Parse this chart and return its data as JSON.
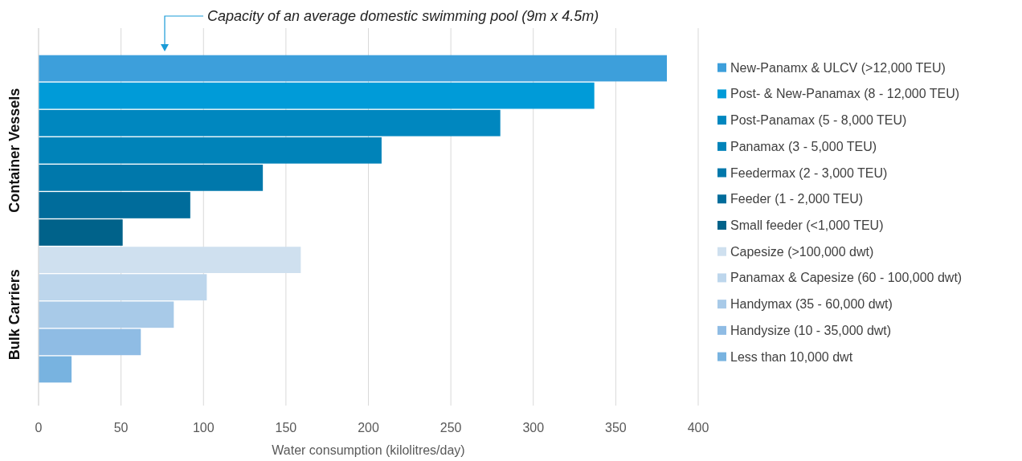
{
  "chart_data": {
    "type": "bar",
    "orientation": "horizontal",
    "stacked": true,
    "categories": [
      null,
      null,
      null,
      null,
      null,
      null,
      null,
      null,
      null,
      null,
      null,
      null
    ],
    "series": [
      {
        "name": "New-Panamx & ULCV (>12,000 TEU)",
        "color": "#3d9fdb",
        "values": [
          381,
          null,
          null,
          null,
          null,
          null,
          null,
          null,
          null,
          null,
          null,
          null
        ]
      },
      {
        "name": "Post- & New-Panamax (8 - 12,000 TEU)",
        "color": "#009bd8",
        "values": [
          null,
          337,
          null,
          null,
          null,
          null,
          null,
          null,
          null,
          null,
          null,
          null
        ]
      },
      {
        "name": "Post-Panamax (5 - 8,000 TEU)",
        "color": "#0087bf",
        "values": [
          null,
          null,
          280,
          null,
          null,
          null,
          null,
          null,
          null,
          null,
          null,
          null
        ]
      },
      {
        "name": "Panamax (3 - 5,000 TEU)",
        "color": "#0083b9",
        "values": [
          null,
          null,
          null,
          208,
          null,
          null,
          null,
          null,
          null,
          null,
          null,
          null
        ]
      },
      {
        "name": "Feedermax (2 - 3,000 TEU)",
        "color": "#0078ab",
        "values": [
          null,
          null,
          null,
          null,
          136,
          null,
          null,
          null,
          null,
          null,
          null,
          null
        ]
      },
      {
        "name": "Feeder (1 - 2,000 TEU)",
        "color": "#006c9b",
        "values": [
          null,
          null,
          null,
          null,
          null,
          92,
          null,
          null,
          null,
          null,
          null,
          null
        ]
      },
      {
        "name": "Small feeder (<1,000 TEU)",
        "color": "#00628a",
        "values": [
          null,
          null,
          null,
          null,
          null,
          null,
          51,
          null,
          null,
          null,
          null,
          null
        ]
      },
      {
        "name": "Capesize (>100,000 dwt)",
        "color": "#cfe0ef",
        "values": [
          null,
          null,
          null,
          null,
          null,
          null,
          null,
          159,
          null,
          null,
          null,
          null
        ]
      },
      {
        "name": "Panamax & Capesize (60 - 100,000 dwt)",
        "color": "#bdd6ec",
        "values": [
          null,
          null,
          null,
          null,
          null,
          null,
          null,
          null,
          102,
          null,
          null,
          null
        ]
      },
      {
        "name": "Handymax (35 - 60,000 dwt)",
        "color": "#a8cae8",
        "values": [
          null,
          null,
          null,
          null,
          null,
          null,
          null,
          null,
          null,
          82,
          null,
          null
        ]
      },
      {
        "name": "Handysize (10 - 35,000 dwt)",
        "color": "#8fbce4",
        "values": [
          null,
          null,
          null,
          null,
          null,
          null,
          null,
          null,
          null,
          null,
          62,
          null
        ]
      },
      {
        "name": "Less than 10,000 dwt",
        "color": "#78b3e0",
        "values": [
          null,
          null,
          null,
          null,
          null,
          null,
          null,
          null,
          null,
          null,
          null,
          20
        ]
      }
    ],
    "xlim": [
      0,
      400
    ],
    "xticks": [
      0,
      50,
      100,
      150,
      200,
      250,
      300,
      350,
      400
    ],
    "xlabel": "Water consumption (kilolitres/day)",
    "grid": "x",
    "legend": "right",
    "annotations": [
      "Capacity of an average domestic swimming pool (9m x 4.5m)",
      "Container Vessels",
      "Bulk Carriers"
    ]
  }
}
